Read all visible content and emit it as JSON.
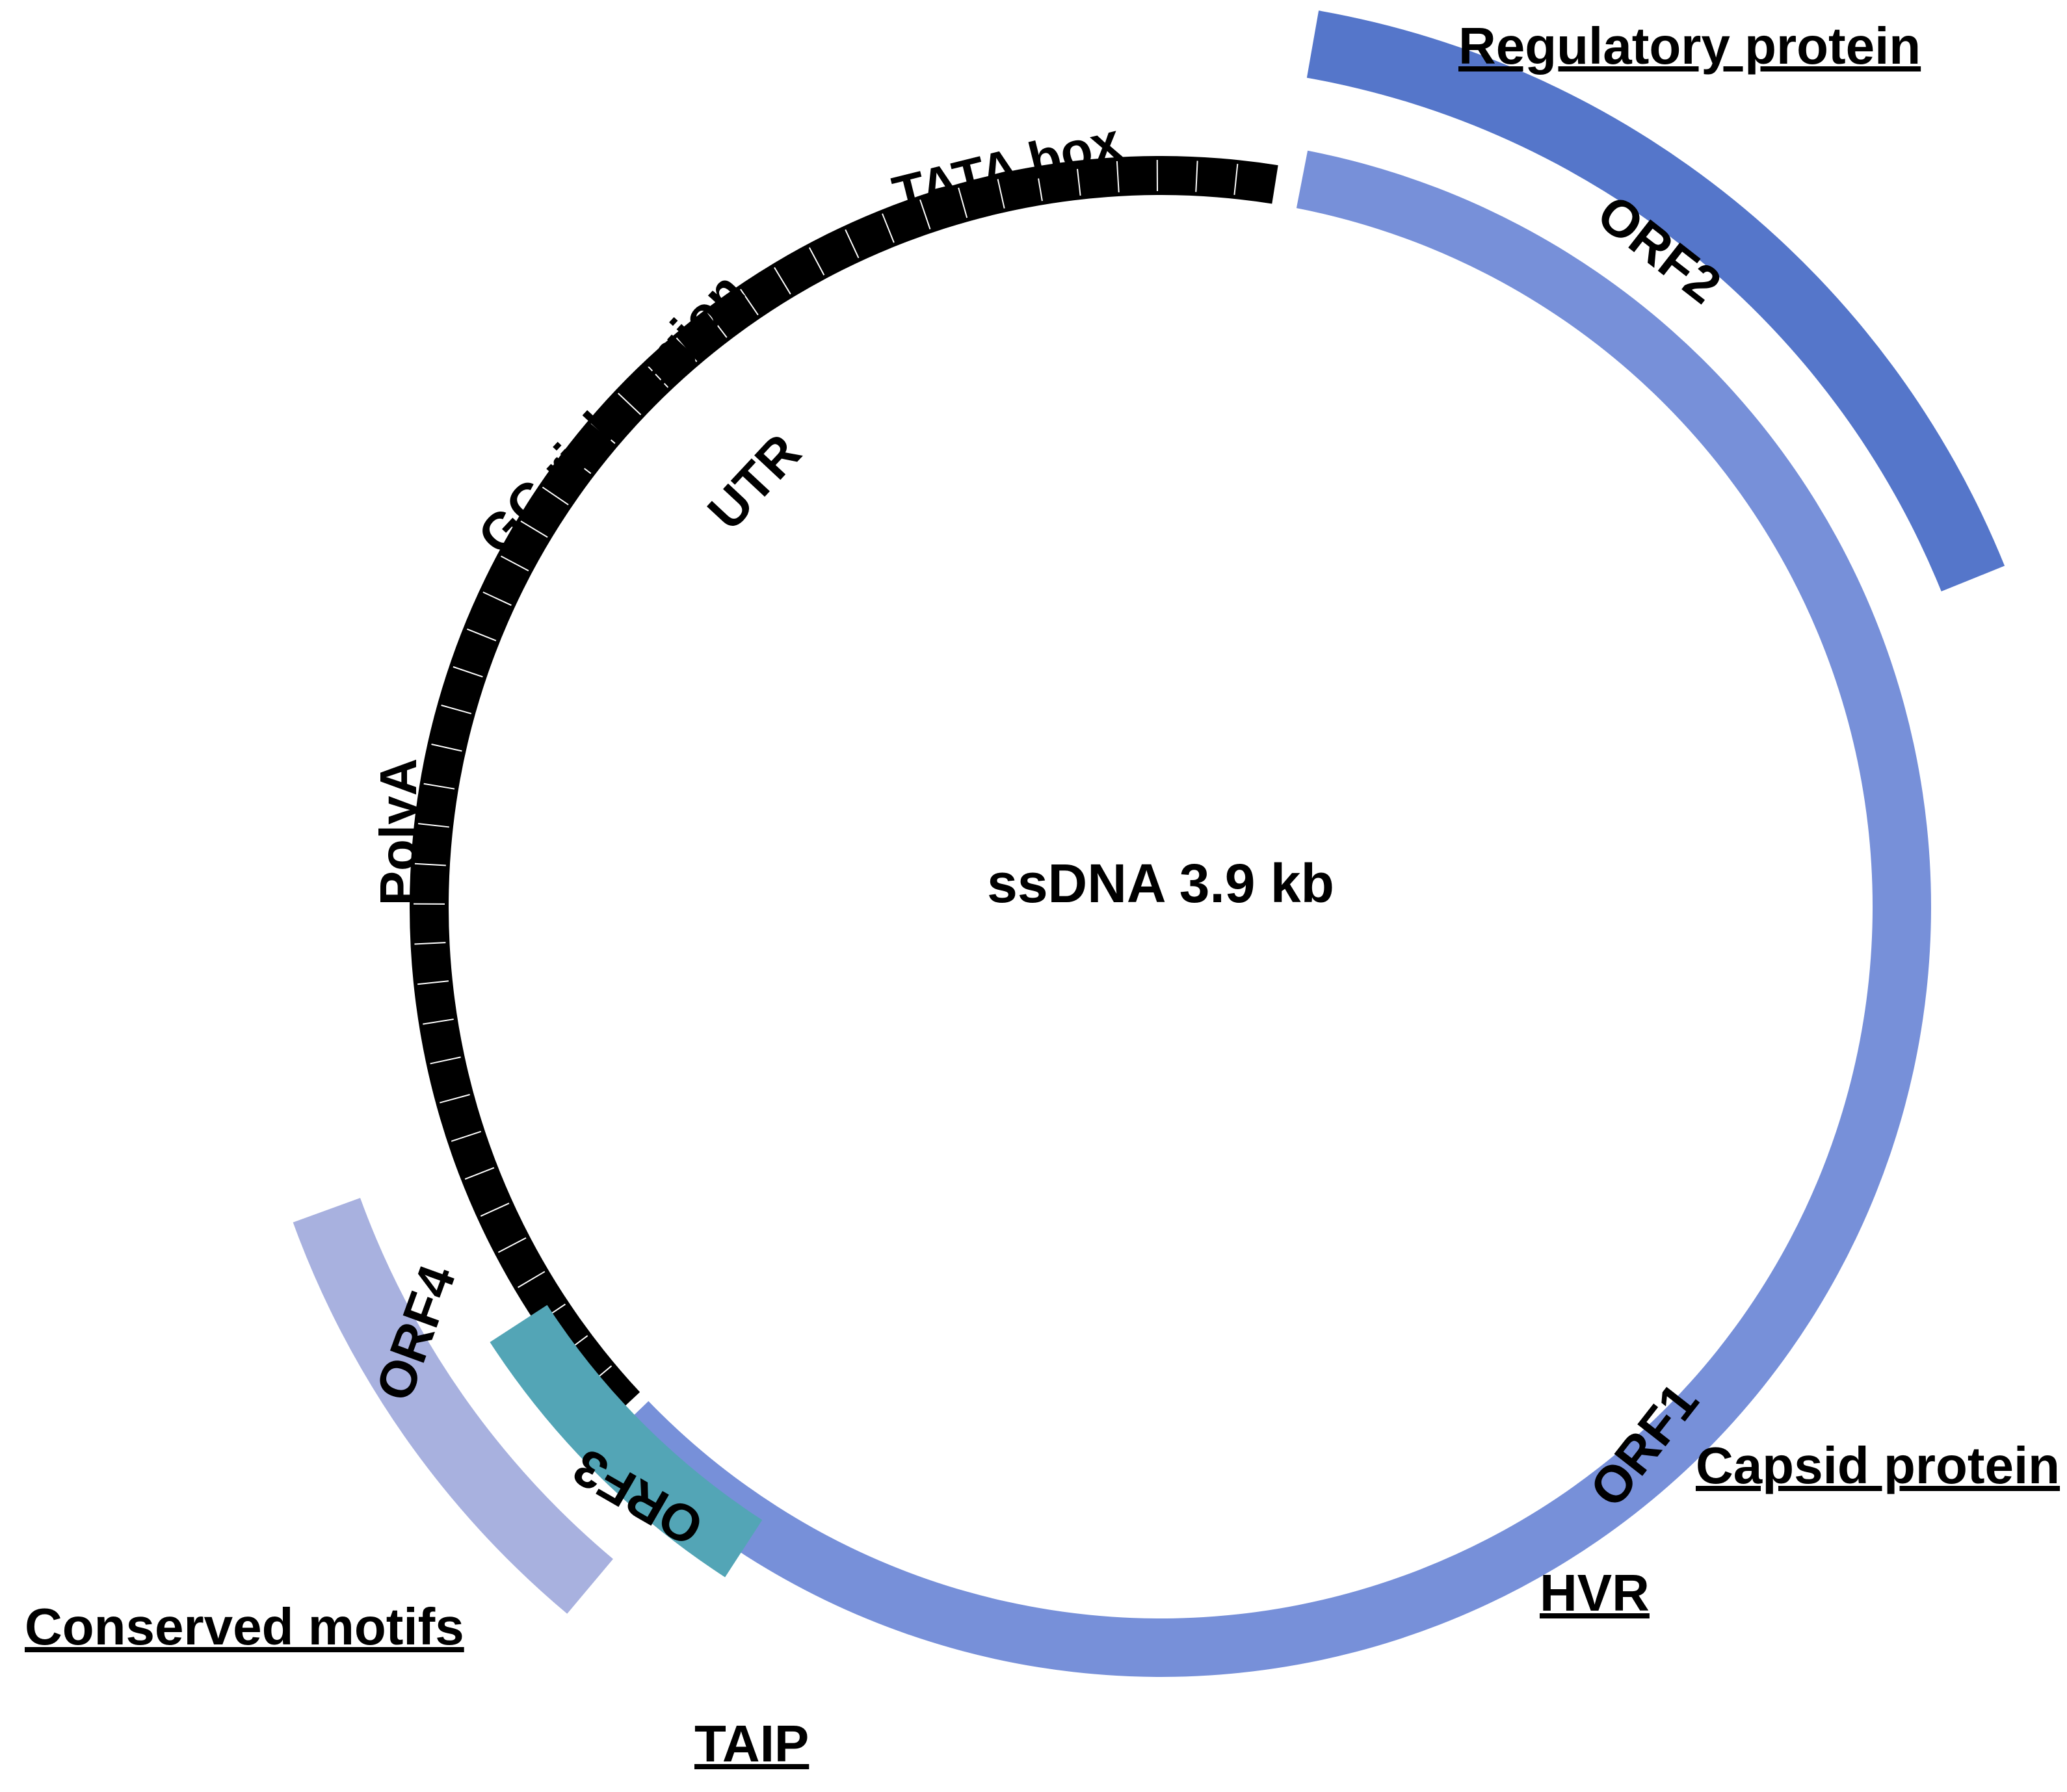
{
  "genome": {
    "label": "ssDNA 3.9 kb",
    "colors": {
      "utr": "#000000",
      "utr_divider": "#ffffff",
      "orf1": "#7790d9",
      "orf2": "#5576ca",
      "orf3": "#53a5b6",
      "orf4": "#a8b1df"
    }
  },
  "utr_region": {
    "labels": {
      "tata_box": "TATA box",
      "gc_rich": "GC rich region",
      "utr": "UTR",
      "polya": "PolyA"
    },
    "segment_count": 46
  },
  "orfs": [
    {
      "id": "orf1",
      "label": "ORF1",
      "product": "Capsid protein",
      "subregion": "HVR"
    },
    {
      "id": "orf2",
      "label": "ORF2",
      "product": "Regulatory protein"
    },
    {
      "id": "orf3",
      "label": "ORF3",
      "product": "TAIP"
    },
    {
      "id": "orf4",
      "label": "ORF4",
      "product": "Conserved motifs"
    }
  ]
}
